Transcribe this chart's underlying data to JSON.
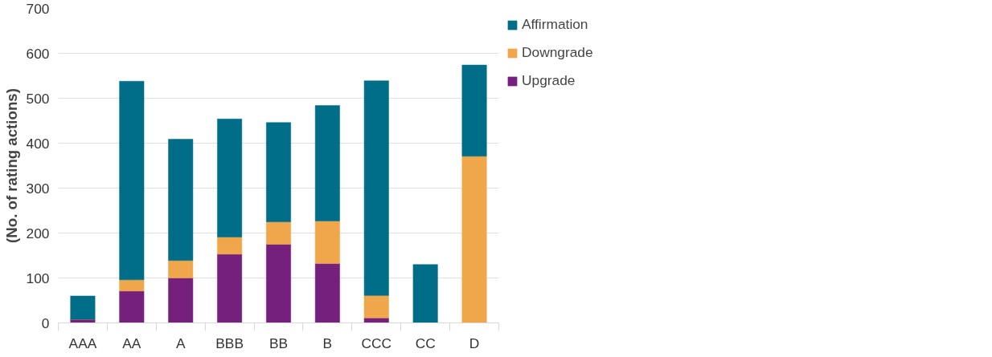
{
  "chart_data": {
    "type": "bar",
    "stacked": true,
    "ylabel": "(No. of rating actions)",
    "categories": [
      "AAA",
      "AA",
      "A",
      "BBB",
      "BB",
      "B",
      "CCC",
      "CC",
      "D"
    ],
    "series": [
      {
        "name": "Upgrade",
        "color": "#76207e",
        "values": [
          8,
          71,
          100,
          153,
          175,
          132,
          11,
          0,
          0
        ]
      },
      {
        "name": "Downgrade",
        "color": "#f0a64b",
        "values": [
          0,
          25,
          39,
          38,
          50,
          95,
          50,
          0,
          371
        ]
      },
      {
        "name": "Affirmation",
        "color": "#006e89",
        "values": [
          52,
          442,
          270,
          263,
          221,
          257,
          478,
          130,
          203
        ]
      }
    ],
    "ylim": [
      0,
      700
    ],
    "yticks": [
      0,
      100,
      200,
      300,
      400,
      500,
      600,
      700
    ],
    "grid": "y",
    "legend": "right"
  }
}
